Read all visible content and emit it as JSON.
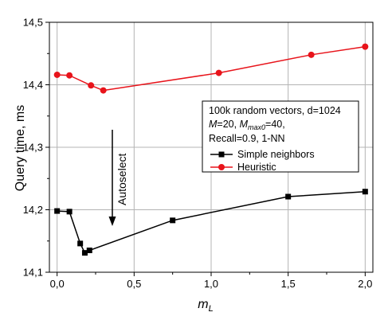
{
  "chart_data": {
    "type": "line",
    "xlabel_main": "m",
    "xlabel_sub": "L",
    "ylabel": "Query time, ms",
    "xlim": [
      -0.05,
      2.05
    ],
    "ylim": [
      14.1,
      14.5
    ],
    "x_ticks": [
      0.0,
      0.5,
      1.0,
      1.5,
      2.0
    ],
    "x_tick_labels": [
      "0,0",
      "0,5",
      "1,0",
      "1,5",
      "2,0"
    ],
    "y_ticks": [
      14.1,
      14.2,
      14.3,
      14.4,
      14.5
    ],
    "y_tick_labels": [
      "14,1",
      "14,2",
      "14,3",
      "14,4",
      "14,5"
    ],
    "grid": true,
    "legend": {
      "placement": "right",
      "line1": "100k random vectors, d=1024",
      "line2": {
        "m": "M",
        "rest1": "=20, ",
        "m2": "M",
        "sub": "max0",
        "rest2": "=40,"
      },
      "line3": "Recall=0.9, 1-NN"
    },
    "annotation": "Autoselect",
    "series": [
      {
        "name": "Simple neighbors",
        "color": "#000000",
        "marker": "square",
        "x": [
          0.0,
          0.08,
          0.15,
          0.18,
          0.21,
          0.75,
          1.5,
          2.0
        ],
        "y": [
          14.198,
          14.197,
          14.146,
          14.131,
          14.135,
          14.183,
          14.221,
          14.229
        ]
      },
      {
        "name": "Heuristic",
        "color": "#e8141b",
        "marker": "circle",
        "x": [
          0.0,
          0.08,
          0.22,
          0.3,
          1.05,
          1.65,
          2.0
        ],
        "y": [
          14.416,
          14.415,
          14.399,
          14.391,
          14.419,
          14.448,
          14.461
        ]
      }
    ]
  }
}
